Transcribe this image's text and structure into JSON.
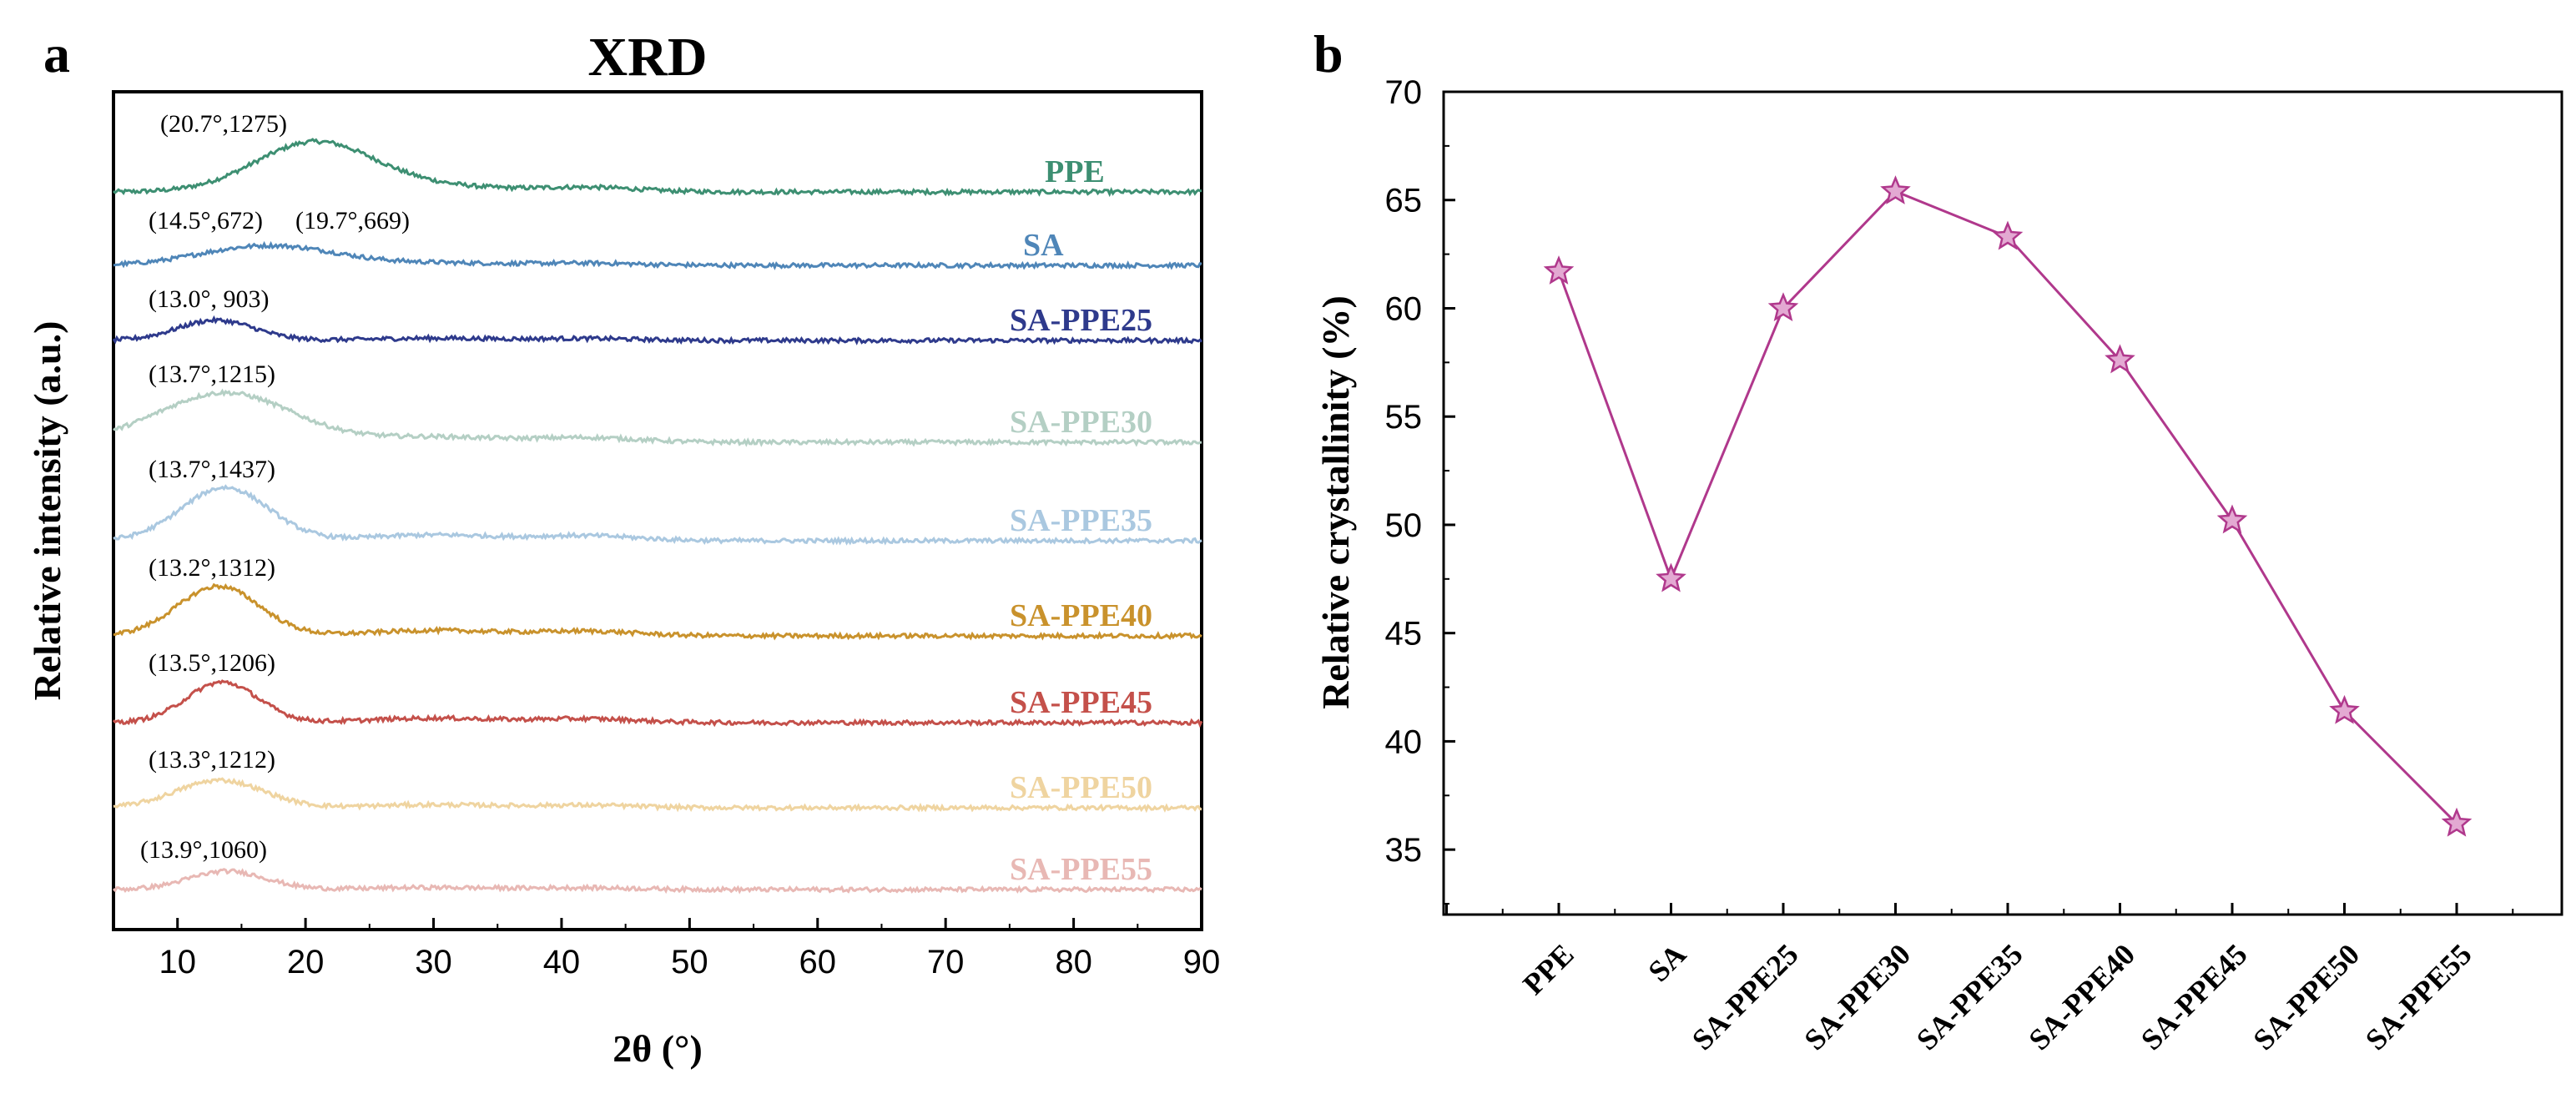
{
  "chart_data": [
    {
      "panel": "a",
      "type": "line",
      "title": "XRD",
      "xlabel": "2θ (°)",
      "ylabel": "Relative intensity (a.u.)",
      "xlim": [
        5,
        90
      ],
      "xticks": [
        10,
        20,
        30,
        40,
        50,
        60,
        70,
        80,
        90
      ],
      "grid": false,
      "series": [
        {
          "name": "PPE",
          "color": "#3d8f72",
          "peaks": [
            {
              "label": "(20.7°,1275)",
              "x": 20.7
            }
          ]
        },
        {
          "name": "SA",
          "color": "#4f86b8",
          "peaks": [
            {
              "label": "(14.5°,672)",
              "x": 14.5
            },
            {
              "label": "(19.7°,669)",
              "x": 19.7
            }
          ]
        },
        {
          "name": "SA-PPE25",
          "color": "#2e3a8c",
          "peaks": [
            {
              "label": "(13.0°, 903)",
              "x": 13.0
            }
          ]
        },
        {
          "name": "SA-PPE30",
          "color": "#b4cfc4",
          "peaks": [
            {
              "label": "(13.7°,1215)",
              "x": 13.7
            }
          ]
        },
        {
          "name": "SA-PPE35",
          "color": "#aac8e0",
          "peaks": [
            {
              "label": "(13.7°,1437)",
              "x": 13.7
            }
          ]
        },
        {
          "name": "SA-PPE40",
          "color": "#c9922c",
          "peaks": [
            {
              "label": "(13.2°,1312)",
              "x": 13.2
            }
          ]
        },
        {
          "name": "SA-PPE45",
          "color": "#c4504a",
          "peaks": [
            {
              "label": "(13.5°,1206)",
              "x": 13.5
            }
          ]
        },
        {
          "name": "SA-PPE50",
          "color": "#efd4a0",
          "peaks": [
            {
              "label": "(13.3°,1212)",
              "x": 13.3
            }
          ]
        },
        {
          "name": "SA-PPE55",
          "color": "#e8b8b4",
          "peaks": [
            {
              "label": "(13.9°,1060)",
              "x": 13.9
            }
          ]
        }
      ]
    },
    {
      "panel": "b",
      "type": "line",
      "title": "",
      "xlabel": "",
      "ylabel": "Relative crystallinity (%)",
      "ylim": [
        32,
        70
      ],
      "yticks": [
        35,
        40,
        45,
        50,
        55,
        60,
        65,
        70
      ],
      "categories": [
        "PPE",
        "SA",
        "SA-PPE25",
        "SA-PPE30",
        "SA-PPE35",
        "SA-PPE40",
        "SA-PPE45",
        "SA-PPE50",
        "SA-PPE55"
      ],
      "values": [
        61.7,
        47.5,
        60.0,
        65.4,
        63.3,
        57.6,
        50.2,
        41.4,
        36.2
      ],
      "marker": "star",
      "color": "#b0388c",
      "grid": false
    }
  ]
}
